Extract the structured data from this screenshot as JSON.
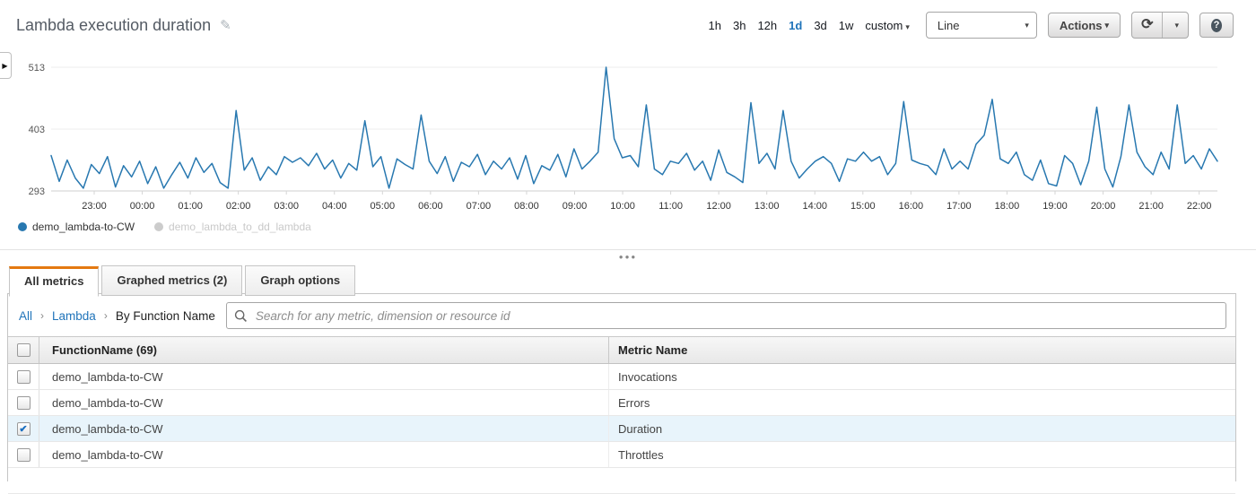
{
  "widget": {
    "title": "Lambda execution duration"
  },
  "toolbar": {
    "time_ranges": [
      {
        "label": "1h",
        "active": false
      },
      {
        "label": "3h",
        "active": false
      },
      {
        "label": "12h",
        "active": false
      },
      {
        "label": "1d",
        "active": true
      },
      {
        "label": "3d",
        "active": false
      },
      {
        "label": "1w",
        "active": false
      },
      {
        "label": "custom",
        "active": false,
        "caret": true
      }
    ],
    "graph_style_select": {
      "value": "Line"
    },
    "actions_label": "Actions"
  },
  "chart_data": {
    "type": "line",
    "title": "Lambda execution duration",
    "ylabel": "",
    "xlabel": "",
    "ylim": [
      293,
      513
    ],
    "yticks": [
      293,
      403,
      513
    ],
    "x_tick_labels": [
      "23:00",
      "00:00",
      "01:00",
      "02:00",
      "03:00",
      "04:00",
      "05:00",
      "06:00",
      "07:00",
      "08:00",
      "09:00",
      "10:00",
      "11:00",
      "12:00",
      "13:00",
      "14:00",
      "15:00",
      "16:00",
      "17:00",
      "18:00",
      "19:00",
      "20:00",
      "21:00",
      "22:00"
    ],
    "grid": true,
    "legend_position": "bottom-left",
    "series": [
      {
        "name": "demo_lambda-to-CW",
        "color": "#2878b0",
        "values": [
          356,
          310,
          348,
          316,
          298,
          340,
          324,
          354,
          300,
          338,
          318,
          346,
          306,
          336,
          298,
          322,
          344,
          316,
          352,
          326,
          342,
          308,
          298,
          436,
          330,
          352,
          312,
          336,
          322,
          354,
          344,
          352,
          338,
          360,
          332,
          348,
          316,
          342,
          330,
          418,
          336,
          354,
          298,
          350,
          340,
          332,
          428,
          346,
          324,
          354,
          310,
          344,
          336,
          358,
          322,
          346,
          332,
          352,
          314,
          356,
          306,
          338,
          330,
          358,
          318,
          368,
          332,
          346,
          362,
          513,
          386,
          352,
          356,
          336,
          446,
          332,
          322,
          346,
          342,
          360,
          330,
          346,
          312,
          366,
          326,
          318,
          308,
          450,
          342,
          360,
          332,
          436,
          346,
          316,
          332,
          346,
          354,
          342,
          310,
          350,
          346,
          362,
          346,
          354,
          322,
          342,
          452,
          348,
          342,
          338,
          322,
          368,
          332,
          346,
          332,
          376,
          392,
          456,
          350,
          342,
          362,
          322,
          312,
          348,
          306,
          302,
          356,
          342,
          304,
          346,
          442,
          332,
          300,
          354,
          446,
          362,
          336,
          322,
          362,
          332,
          446,
          342,
          356,
          332,
          368,
          346
        ]
      },
      {
        "name": "demo_lambda_to_dd_lambda",
        "color": "#cccccc",
        "enabled": false,
        "values": []
      }
    ]
  },
  "legend": [
    {
      "name": "demo_lambda-to-CW",
      "color": "#2878b0",
      "enabled": true
    },
    {
      "name": "demo_lambda_to_dd_lambda",
      "color": "#cccccc",
      "enabled": false
    }
  ],
  "tabs": [
    {
      "label": "All metrics",
      "active": true
    },
    {
      "label": "Graphed metrics (2)",
      "active": false
    },
    {
      "label": "Graph options",
      "active": false
    }
  ],
  "browser": {
    "breadcrumb": [
      "All",
      "Lambda",
      "By Function Name"
    ],
    "search_placeholder": "Search for any metric, dimension or resource id"
  },
  "table": {
    "columns": [
      {
        "label": "FunctionName  (69)"
      },
      {
        "label": "Metric Name"
      }
    ],
    "rows": [
      {
        "function_name": "demo_lambda-to-CW",
        "metric_name": "Invocations",
        "checked": false
      },
      {
        "function_name": "demo_lambda-to-CW",
        "metric_name": "Errors",
        "checked": false
      },
      {
        "function_name": "demo_lambda-to-CW",
        "metric_name": "Duration",
        "checked": true
      },
      {
        "function_name": "demo_lambda-to-CW",
        "metric_name": "Throttles",
        "checked": false
      }
    ]
  },
  "colors": {
    "accent_orange": "#e47911",
    "line_blue": "#2878b0",
    "link_blue": "#2074ba",
    "selected_row_bg": "#e8f4fb",
    "disabled_legend": "#cccccc"
  }
}
